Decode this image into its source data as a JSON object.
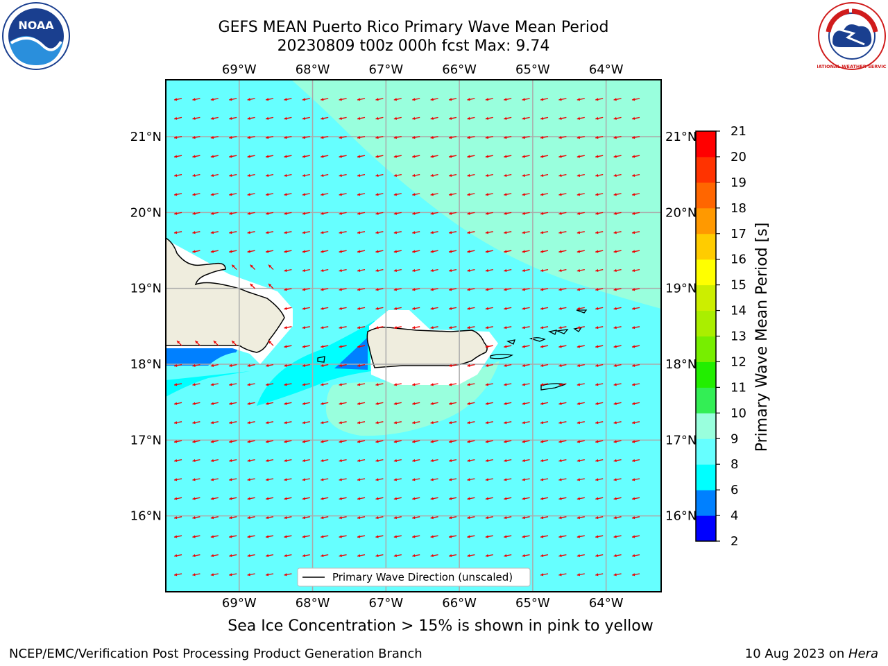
{
  "title_line1": "GEFS MEAN Puerto Rico Primary Wave Mean Period",
  "title_line2": "20230809 t00z 000h fcst   Max: 9.74",
  "caption": "Sea Ice Concentration > 15% is shown in pink to yellow",
  "footer_left": "NCEP/EMC/Verification Post Processing Product Generation Branch",
  "footer_date": "10 Aug 2023 on ",
  "footer_machine": "Hera",
  "legend_label": "Primary Wave Direction (unscaled)",
  "logos": {
    "noaa_text": "NOAA",
    "nws_text": "NATIONAL WEATHER SERVICE"
  },
  "map": {
    "lon_range": [
      -70.0,
      -63.25
    ],
    "lat_range": [
      15.0,
      21.75
    ],
    "lon_ticks": [
      -69,
      -68,
      -67,
      -66,
      -65,
      -64
    ],
    "lon_tick_labels": [
      "69°W",
      "68°W",
      "67°W",
      "66°W",
      "65°W",
      "64°W"
    ],
    "lat_ticks": [
      16,
      17,
      18,
      19,
      20,
      21
    ],
    "lat_tick_labels": [
      "16°N",
      "17°N",
      "18°N",
      "19°N",
      "20°N",
      "21°N"
    ],
    "gridlines": true,
    "arrow_color": "#ee0000",
    "arrow_direction": "westward (toward west-southwest)",
    "dominant_period_s": "8-9",
    "max_period_s": 9.74
  },
  "colorbar": {
    "label": "Primary Wave Mean Period [s]",
    "ticks": [
      2,
      4,
      6,
      8,
      9,
      10,
      11,
      12,
      13,
      14,
      15,
      16,
      17,
      18,
      19,
      20,
      21
    ],
    "colors": [
      "#0000ff",
      "#0080ff",
      "#00ffff",
      "#66ffff",
      "#99ffdd",
      "#33ee55",
      "#22ee00",
      "#77ee00",
      "#aaee00",
      "#ccee00",
      "#ffff00",
      "#ffcc00",
      "#ff9900",
      "#ff6600",
      "#ff3300",
      "#ff0000"
    ]
  },
  "colors": {
    "ocean_main": "#66ffff",
    "ocean_light": "#99ffdd",
    "ocean_mid": "#00ffff",
    "ocean_low": "#0080ff",
    "land": "#efedde"
  }
}
